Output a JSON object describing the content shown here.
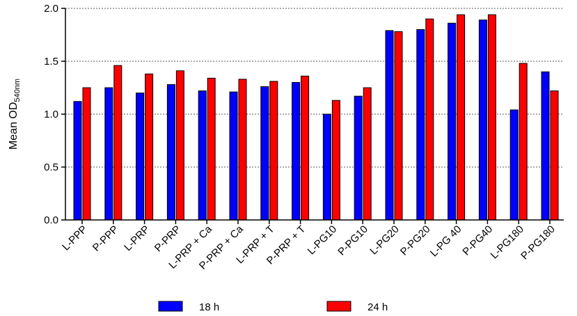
{
  "chart_data": {
    "type": "bar",
    "categories": [
      "L-PPP",
      "P-PPP",
      "L-PRP",
      "P-PRP",
      "L-PRP + Ca",
      "P-PRP + Ca",
      "L-PRP + T",
      "P-PRP + T",
      "L-PG10",
      "P-PG10",
      "L-PG20",
      "P-PG20",
      "L-PG 40",
      "P-PG40",
      "L-PG180",
      "P-PG180"
    ],
    "series": [
      {
        "name": "18 h",
        "color": "#0000ff",
        "values": [
          1.12,
          1.25,
          1.2,
          1.28,
          1.22,
          1.21,
          1.26,
          1.3,
          1.0,
          1.17,
          1.79,
          1.8,
          1.86,
          1.89,
          1.04,
          1.4
        ]
      },
      {
        "name": "24 h",
        "color": "#ff0000",
        "values": [
          1.25,
          1.46,
          1.38,
          1.41,
          1.34,
          1.33,
          1.31,
          1.36,
          1.13,
          1.25,
          1.78,
          1.9,
          1.94,
          1.94,
          1.48,
          1.22
        ]
      }
    ],
    "ylabel_main": "Mean OD",
    "ylabel_sub": "540nm",
    "ylim": [
      0,
      2.0
    ],
    "yticks": [
      "0.0",
      "0.5",
      "1.0",
      "1.5",
      "2.0"
    ],
    "ytick_values": [
      0,
      0.5,
      1.0,
      1.5,
      2.0
    ],
    "grid": "horizontal dotted",
    "legend_position": "bottom"
  }
}
